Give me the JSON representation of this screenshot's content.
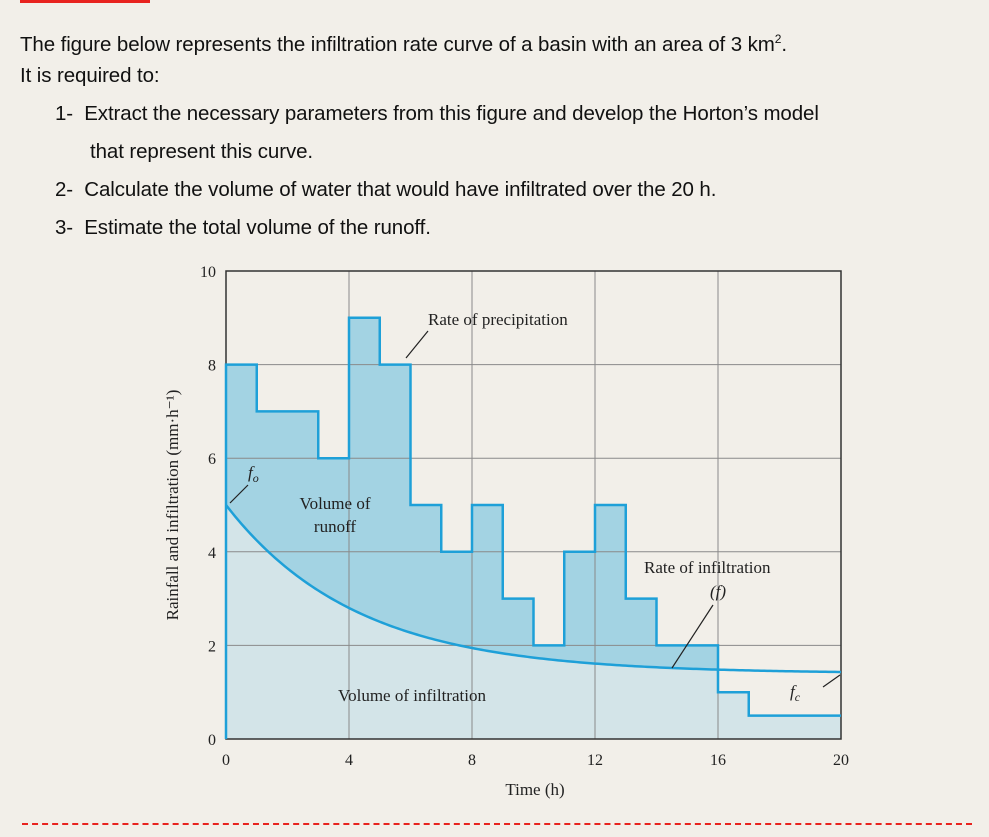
{
  "intro": {
    "text": "The figure below represents the infiltration rate curve of a basin with an area of 3 km",
    "superscript": "2",
    "end": ".",
    "line2": "It is required to:"
  },
  "tasks": [
    {
      "num": "1-",
      "text": "Extract the necessary parameters from this figure and develop the Horton’s model",
      "cont": "that represent this curve."
    },
    {
      "num": "2-",
      "text": "Calculate the volume of water that would have infiltrated over the 20 h."
    },
    {
      "num": "3-",
      "text": "Estimate the total volume of the runoff."
    }
  ],
  "colors": {
    "accent_red": "#e8231f",
    "line_blue": "#1ea0d8",
    "runoff_fill": "#a3d3e3",
    "infiltration_fill": "#d3e4e8"
  },
  "chart_data": {
    "type": "step-and-line",
    "xlabel": "Time (h)",
    "ylabel": "Rainfall and infiltration (mm·h⁻¹)",
    "xlim": [
      0,
      20
    ],
    "ylim": [
      0,
      10
    ],
    "xticks": [
      "0",
      "4",
      "8",
      "12",
      "16",
      "20"
    ],
    "yticks": [
      "0",
      "2",
      "4",
      "6",
      "8",
      "10"
    ],
    "grid": true,
    "precipitation": {
      "name": "Rate of precipitation",
      "steps": [
        {
          "from": 0,
          "to": 1,
          "value": 8
        },
        {
          "from": 1,
          "to": 3,
          "value": 7
        },
        {
          "from": 3,
          "to": 4,
          "value": 6
        },
        {
          "from": 4,
          "to": 5,
          "value": 9
        },
        {
          "from": 5,
          "to": 6,
          "value": 8
        },
        {
          "from": 6,
          "to": 7,
          "value": 5
        },
        {
          "from": 7,
          "to": 8,
          "value": 4
        },
        {
          "from": 8,
          "to": 9,
          "value": 5
        },
        {
          "from": 9,
          "to": 10,
          "value": 3
        },
        {
          "from": 10,
          "to": 11,
          "value": 2
        },
        {
          "from": 11,
          "to": 12,
          "value": 4
        },
        {
          "from": 12,
          "to": 13,
          "value": 5
        },
        {
          "from": 13,
          "to": 14,
          "value": 3
        },
        {
          "from": 14,
          "to": 16,
          "value": 2
        },
        {
          "from": 16,
          "to": 17,
          "value": 1
        },
        {
          "from": 17,
          "to": 20,
          "value": 0.5
        }
      ]
    },
    "infiltration": {
      "name": "Rate of infiltration",
      "symbol": "(f)",
      "f0": 5,
      "fc": 1.4,
      "points": [
        [
          0,
          5
        ],
        [
          2,
          3.7
        ],
        [
          4,
          2.8
        ],
        [
          6,
          2.3
        ],
        [
          8,
          2.0
        ],
        [
          10,
          1.75
        ],
        [
          12,
          1.6
        ],
        [
          14,
          1.5
        ],
        [
          16,
          1.45
        ],
        [
          18,
          1.42
        ],
        [
          20,
          1.41
        ]
      ]
    },
    "annotations": {
      "f0": "f",
      "f0_sub": "o",
      "fc": "f",
      "fc_sub": "c",
      "runoff_1": "Volume of",
      "runoff_2": "runoff",
      "infiltration_area": "Volume of infiltration"
    }
  }
}
